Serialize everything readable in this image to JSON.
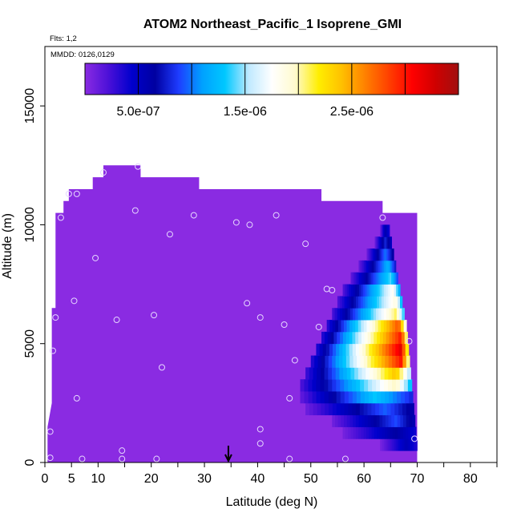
{
  "chart_data": {
    "type": "heatmap",
    "title": "ATOM2 Northeast_Pacific_1 Isoprene_GMI",
    "flights_note": "Flts: 1,2",
    "dates_note": "MMDD: 0126,0129",
    "xlabel": "Latitude (deg N)",
    "ylabel": "Altitude (m)",
    "xlim": [
      0,
      85
    ],
    "ylim": [
      0,
      17500
    ],
    "x_ticks": [
      0,
      5,
      10,
      20,
      30,
      40,
      50,
      60,
      70,
      80
    ],
    "y_ticks": [
      0,
      5000,
      10000,
      15000
    ],
    "colorbar": {
      "min": 0,
      "max": 3.5e-06,
      "tick_values": [
        5e-07,
        1.5e-06,
        2.5e-06
      ],
      "tick_labels": [
        "5.0e-07",
        "1.5e-06",
        "2.5e-06"
      ],
      "colors": [
        "#8a2be2",
        "#4b10d8",
        "#0000cd",
        "#0000a0",
        "#1e3cff",
        "#00a0ff",
        "#00c8ff",
        "#bfe9ff",
        "#ffffff",
        "#fffacd",
        "#ffee00",
        "#ffc000",
        "#ff8000",
        "#ff4000",
        "#ff0000",
        "#d00000",
        "#a01010"
      ]
    },
    "background_value": 0,
    "tropical_envelope": [
      [
        0.5,
        0
      ],
      [
        0.5,
        1500
      ],
      [
        1.3,
        2500
      ],
      [
        1.3,
        6500
      ],
      [
        2,
        6500
      ],
      [
        2,
        10500
      ],
      [
        3.5,
        10500
      ],
      [
        3.5,
        11000
      ],
      [
        4.5,
        11000
      ],
      [
        4.5,
        11500
      ],
      [
        9,
        11500
      ],
      [
        9,
        12000
      ],
      [
        11,
        12000
      ],
      [
        11,
        12500
      ],
      [
        18,
        12500
      ],
      [
        18,
        12000
      ],
      [
        29,
        12000
      ],
      [
        29,
        11500
      ],
      [
        52,
        11500
      ],
      [
        52,
        11000
      ],
      [
        63.5,
        11000
      ],
      [
        63.5,
        10500
      ],
      [
        70,
        10500
      ],
      [
        70,
        0
      ]
    ],
    "plume": [
      {
        "alt": 1000,
        "lat_start": 63.0,
        "lat_end": 70.0,
        "peak": 5.5e-07,
        "peak_lat": 68.0
      },
      {
        "alt": 1500,
        "lat_start": 56.0,
        "lat_end": 69.8,
        "peak": 6.5e-07,
        "peak_lat": 66.0
      },
      {
        "alt": 2000,
        "lat_start": 54.0,
        "lat_end": 69.6,
        "peak": 9e-07,
        "peak_lat": 66.0
      },
      {
        "alt": 2500,
        "lat_start": 49.0,
        "lat_end": 69.4,
        "peak": 9.5e-07,
        "peak_lat": 64.0
      },
      {
        "alt": 3000,
        "lat_start": 48.0,
        "lat_end": 69.2,
        "peak": 1.3e-06,
        "peak_lat": 62.0
      },
      {
        "alt": 3500,
        "lat_start": 48.0,
        "lat_end": 69.0,
        "peak": 2e-06,
        "peak_lat": 66.0
      },
      {
        "alt": 4000,
        "lat_start": 49.0,
        "lat_end": 68.8,
        "peak": 2.4e-06,
        "peak_lat": 66.0
      },
      {
        "alt": 4500,
        "lat_start": 50.0,
        "lat_end": 68.6,
        "peak": 3e-06,
        "peak_lat": 67.0
      },
      {
        "alt": 5000,
        "lat_start": 51.0,
        "lat_end": 68.4,
        "peak": 3.2e-06,
        "peak_lat": 67.0
      },
      {
        "alt": 5500,
        "lat_start": 52.0,
        "lat_end": 68.2,
        "peak": 3e-06,
        "peak_lat": 67.0
      },
      {
        "alt": 6000,
        "lat_start": 53.0,
        "lat_end": 68.0,
        "peak": 2.8e-06,
        "peak_lat": 66.5
      },
      {
        "alt": 6500,
        "lat_start": 54.0,
        "lat_end": 67.6,
        "peak": 2.1e-06,
        "peak_lat": 66.0
      },
      {
        "alt": 7000,
        "lat_start": 55.0,
        "lat_end": 67.2,
        "peak": 1.9e-06,
        "peak_lat": 66.0
      },
      {
        "alt": 7500,
        "lat_start": 56.0,
        "lat_end": 66.8,
        "peak": 1.8e-06,
        "peak_lat": 65.5
      },
      {
        "alt": 8000,
        "lat_start": 57.5,
        "lat_end": 66.4,
        "peak": 1.4e-06,
        "peak_lat": 65.0
      },
      {
        "alt": 8500,
        "lat_start": 59.0,
        "lat_end": 66.0,
        "peak": 1.2e-06,
        "peak_lat": 64.5
      },
      {
        "alt": 9000,
        "lat_start": 60.5,
        "lat_end": 65.6,
        "peak": 1e-06,
        "peak_lat": 64.0
      },
      {
        "alt": 9500,
        "lat_start": 62.0,
        "lat_end": 65.2,
        "peak": 8e-07,
        "peak_lat": 64.0
      },
      {
        "alt": 10000,
        "lat_start": 63.0,
        "lat_end": 64.8,
        "peak": 6e-07,
        "peak_lat": 64.0
      }
    ],
    "sample_points": [
      [
        11,
        12200
      ],
      [
        17.5,
        12450
      ],
      [
        4.5,
        11300
      ],
      [
        6,
        11300
      ],
      [
        3,
        10300
      ],
      [
        17,
        10600
      ],
      [
        28,
        10400
      ],
      [
        36,
        10100
      ],
      [
        38.5,
        10000
      ],
      [
        43.5,
        10400
      ],
      [
        63.5,
        10300
      ],
      [
        23.5,
        9600
      ],
      [
        9.5,
        8600
      ],
      [
        49,
        9200
      ],
      [
        53,
        7300
      ],
      [
        54,
        7250
      ],
      [
        5.5,
        6800
      ],
      [
        38,
        6700
      ],
      [
        2,
        6100
      ],
      [
        13.5,
        6000
      ],
      [
        20.5,
        6200
      ],
      [
        40.5,
        6100
      ],
      [
        45,
        5800
      ],
      [
        51.5,
        5700
      ],
      [
        68.5,
        5100
      ],
      [
        1.5,
        4700
      ],
      [
        47,
        4300
      ],
      [
        22,
        4000
      ],
      [
        6,
        2700
      ],
      [
        46,
        2700
      ],
      [
        1,
        1300
      ],
      [
        40.5,
        1400
      ],
      [
        69.5,
        1000
      ],
      [
        40.5,
        800
      ],
      [
        14.5,
        500
      ],
      [
        1,
        200
      ],
      [
        7,
        150
      ],
      [
        14.5,
        150
      ],
      [
        21,
        150
      ],
      [
        46,
        150
      ],
      [
        56.5,
        150
      ]
    ],
    "annotations": [
      {
        "type": "arrow",
        "x": 34.5,
        "direction": "down"
      }
    ]
  }
}
